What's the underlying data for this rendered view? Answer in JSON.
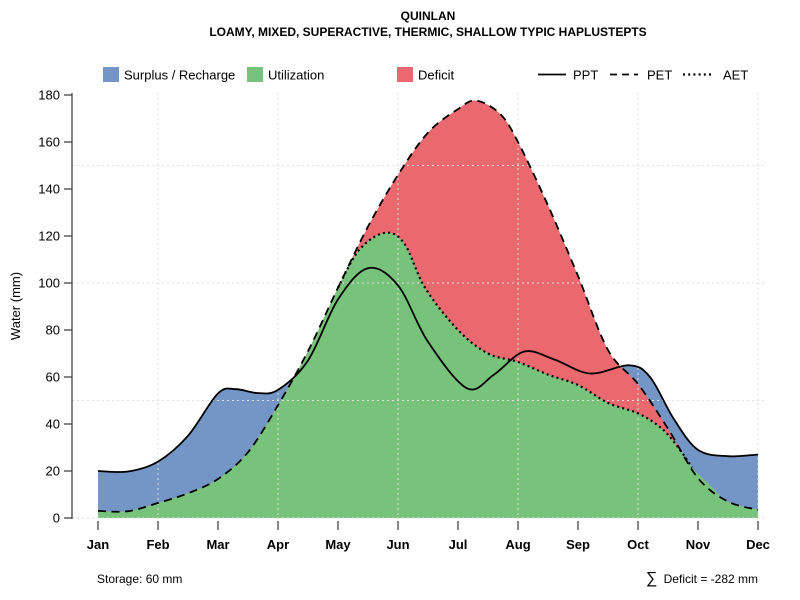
{
  "title": "QUINLAN",
  "subtitle": "LOAMY, MIXED, SUPERACTIVE, THERMIC, SHALLOW TYPIC HAPLUSTEPTS",
  "ylabel": "Water (mm)",
  "legend": {
    "surplus": "Surplus / Recharge",
    "utilization": "Utilization",
    "deficit": "Deficit",
    "ppt": "PPT",
    "pet": "PET",
    "aet": "AET"
  },
  "notes": {
    "storage": "Storage: 60 mm",
    "deficit_sigma": "∑",
    "deficit": "Deficit = -282 mm"
  },
  "colors": {
    "surplus": "#7396C6",
    "utilization": "#77C37B",
    "deficit": "#E9696F",
    "line": "#000000",
    "grid": "#DEDEDE",
    "axis": "#444444"
  },
  "chart_data": {
    "type": "area",
    "title": "QUINLAN",
    "subtitle": "LOAMY, MIXED, SUPERACTIVE, THERMIC, SHALLOW TYPIC HAPLUSTEPTS",
    "xlabel": "",
    "ylabel": "Water (mm)",
    "ylim": [
      0,
      180
    ],
    "yticks": [
      0,
      20,
      40,
      60,
      80,
      100,
      120,
      140,
      160,
      180
    ],
    "categories": [
      "Jan",
      "Feb",
      "Mar",
      "Apr",
      "May",
      "Jun",
      "Jul",
      "Aug",
      "Sep",
      "Oct",
      "Nov",
      "Dec"
    ],
    "grid": {
      "h_values": [
        0,
        50,
        100,
        150
      ],
      "v_month_indices": [
        1,
        3,
        5,
        7,
        9,
        11
      ]
    },
    "legend_position": "top",
    "storage_mm": 60,
    "deficit_sum_mm": -282,
    "monthly_values": {
      "PPT": [
        20,
        24,
        53,
        54,
        93,
        99,
        56,
        69,
        62,
        64,
        29,
        27
      ],
      "PET": [
        3,
        6,
        17,
        48,
        98,
        146,
        174,
        160,
        103,
        57,
        17,
        4
      ],
      "AET": [
        3,
        6,
        17,
        48,
        98,
        118,
        80,
        66,
        57,
        45,
        17,
        4
      ]
    },
    "series": [
      {
        "name": "PPT",
        "style": "solid",
        "points": [
          [
            0,
            20
          ],
          [
            0.5,
            19.8
          ],
          [
            1,
            24
          ],
          [
            1.5,
            35
          ],
          [
            2,
            53
          ],
          [
            2.3,
            54.8
          ],
          [
            2.65,
            53.2
          ],
          [
            3,
            54.5
          ],
          [
            3.5,
            67
          ],
          [
            4,
            93
          ],
          [
            4.5,
            106.3
          ],
          [
            5,
            99
          ],
          [
            5.5,
            75
          ],
          [
            6.15,
            55.2
          ],
          [
            6.6,
            61
          ],
          [
            7.1,
            70.8
          ],
          [
            7.6,
            67.5
          ],
          [
            8.2,
            61.5
          ],
          [
            8.85,
            65
          ],
          [
            9.2,
            60
          ],
          [
            9.6,
            42
          ],
          [
            10,
            29
          ],
          [
            10.5,
            26.3
          ],
          [
            11,
            27
          ]
        ]
      },
      {
        "name": "PET",
        "style": "dashed",
        "points": [
          [
            0,
            3
          ],
          [
            0.5,
            2.9
          ],
          [
            1,
            6.4
          ],
          [
            1.5,
            10.5
          ],
          [
            2,
            16.6
          ],
          [
            2.5,
            28
          ],
          [
            3,
            48
          ],
          [
            3.5,
            71
          ],
          [
            4,
            98
          ],
          [
            4.5,
            124
          ],
          [
            5,
            146
          ],
          [
            5.5,
            164
          ],
          [
            6,
            174
          ],
          [
            6.3,
            177.6
          ],
          [
            6.7,
            172
          ],
          [
            7,
            160
          ],
          [
            7.5,
            133
          ],
          [
            8,
            103
          ],
          [
            8.5,
            71.5
          ],
          [
            9,
            57
          ],
          [
            9.5,
            38
          ],
          [
            10,
            17
          ],
          [
            10.5,
            7
          ],
          [
            11,
            3.5
          ]
        ]
      },
      {
        "name": "AET",
        "style": "dotted",
        "dotted_range": [
          4.0,
          9.9
        ],
        "points": [
          [
            0,
            3
          ],
          [
            0.5,
            2.9
          ],
          [
            1,
            6.4
          ],
          [
            1.5,
            10.5
          ],
          [
            2,
            16.6
          ],
          [
            2.5,
            28
          ],
          [
            3,
            48
          ],
          [
            3.5,
            71
          ],
          [
            4,
            98
          ],
          [
            4.35,
            114
          ],
          [
            4.77,
            121.3
          ],
          [
            5.1,
            117
          ],
          [
            5.45,
            98
          ],
          [
            6,
            80
          ],
          [
            6.5,
            70
          ],
          [
            7,
            66.4
          ],
          [
            7.5,
            61
          ],
          [
            8,
            56.6
          ],
          [
            8.5,
            49
          ],
          [
            9,
            44.5
          ],
          [
            9.4,
            38
          ],
          [
            9.7,
            29
          ],
          [
            9.9,
            21.5
          ],
          [
            10.2,
            14
          ],
          [
            10.5,
            7
          ],
          [
            11,
            3.5
          ]
        ]
      }
    ],
    "areas": [
      {
        "name": "Surplus / Recharge",
        "color_key": "surplus",
        "under_series": "PPT"
      },
      {
        "name": "Deficit",
        "color_key": "deficit",
        "under_series": "PET"
      },
      {
        "name": "Utilization",
        "color_key": "utilization",
        "under_series": "AET"
      }
    ]
  }
}
